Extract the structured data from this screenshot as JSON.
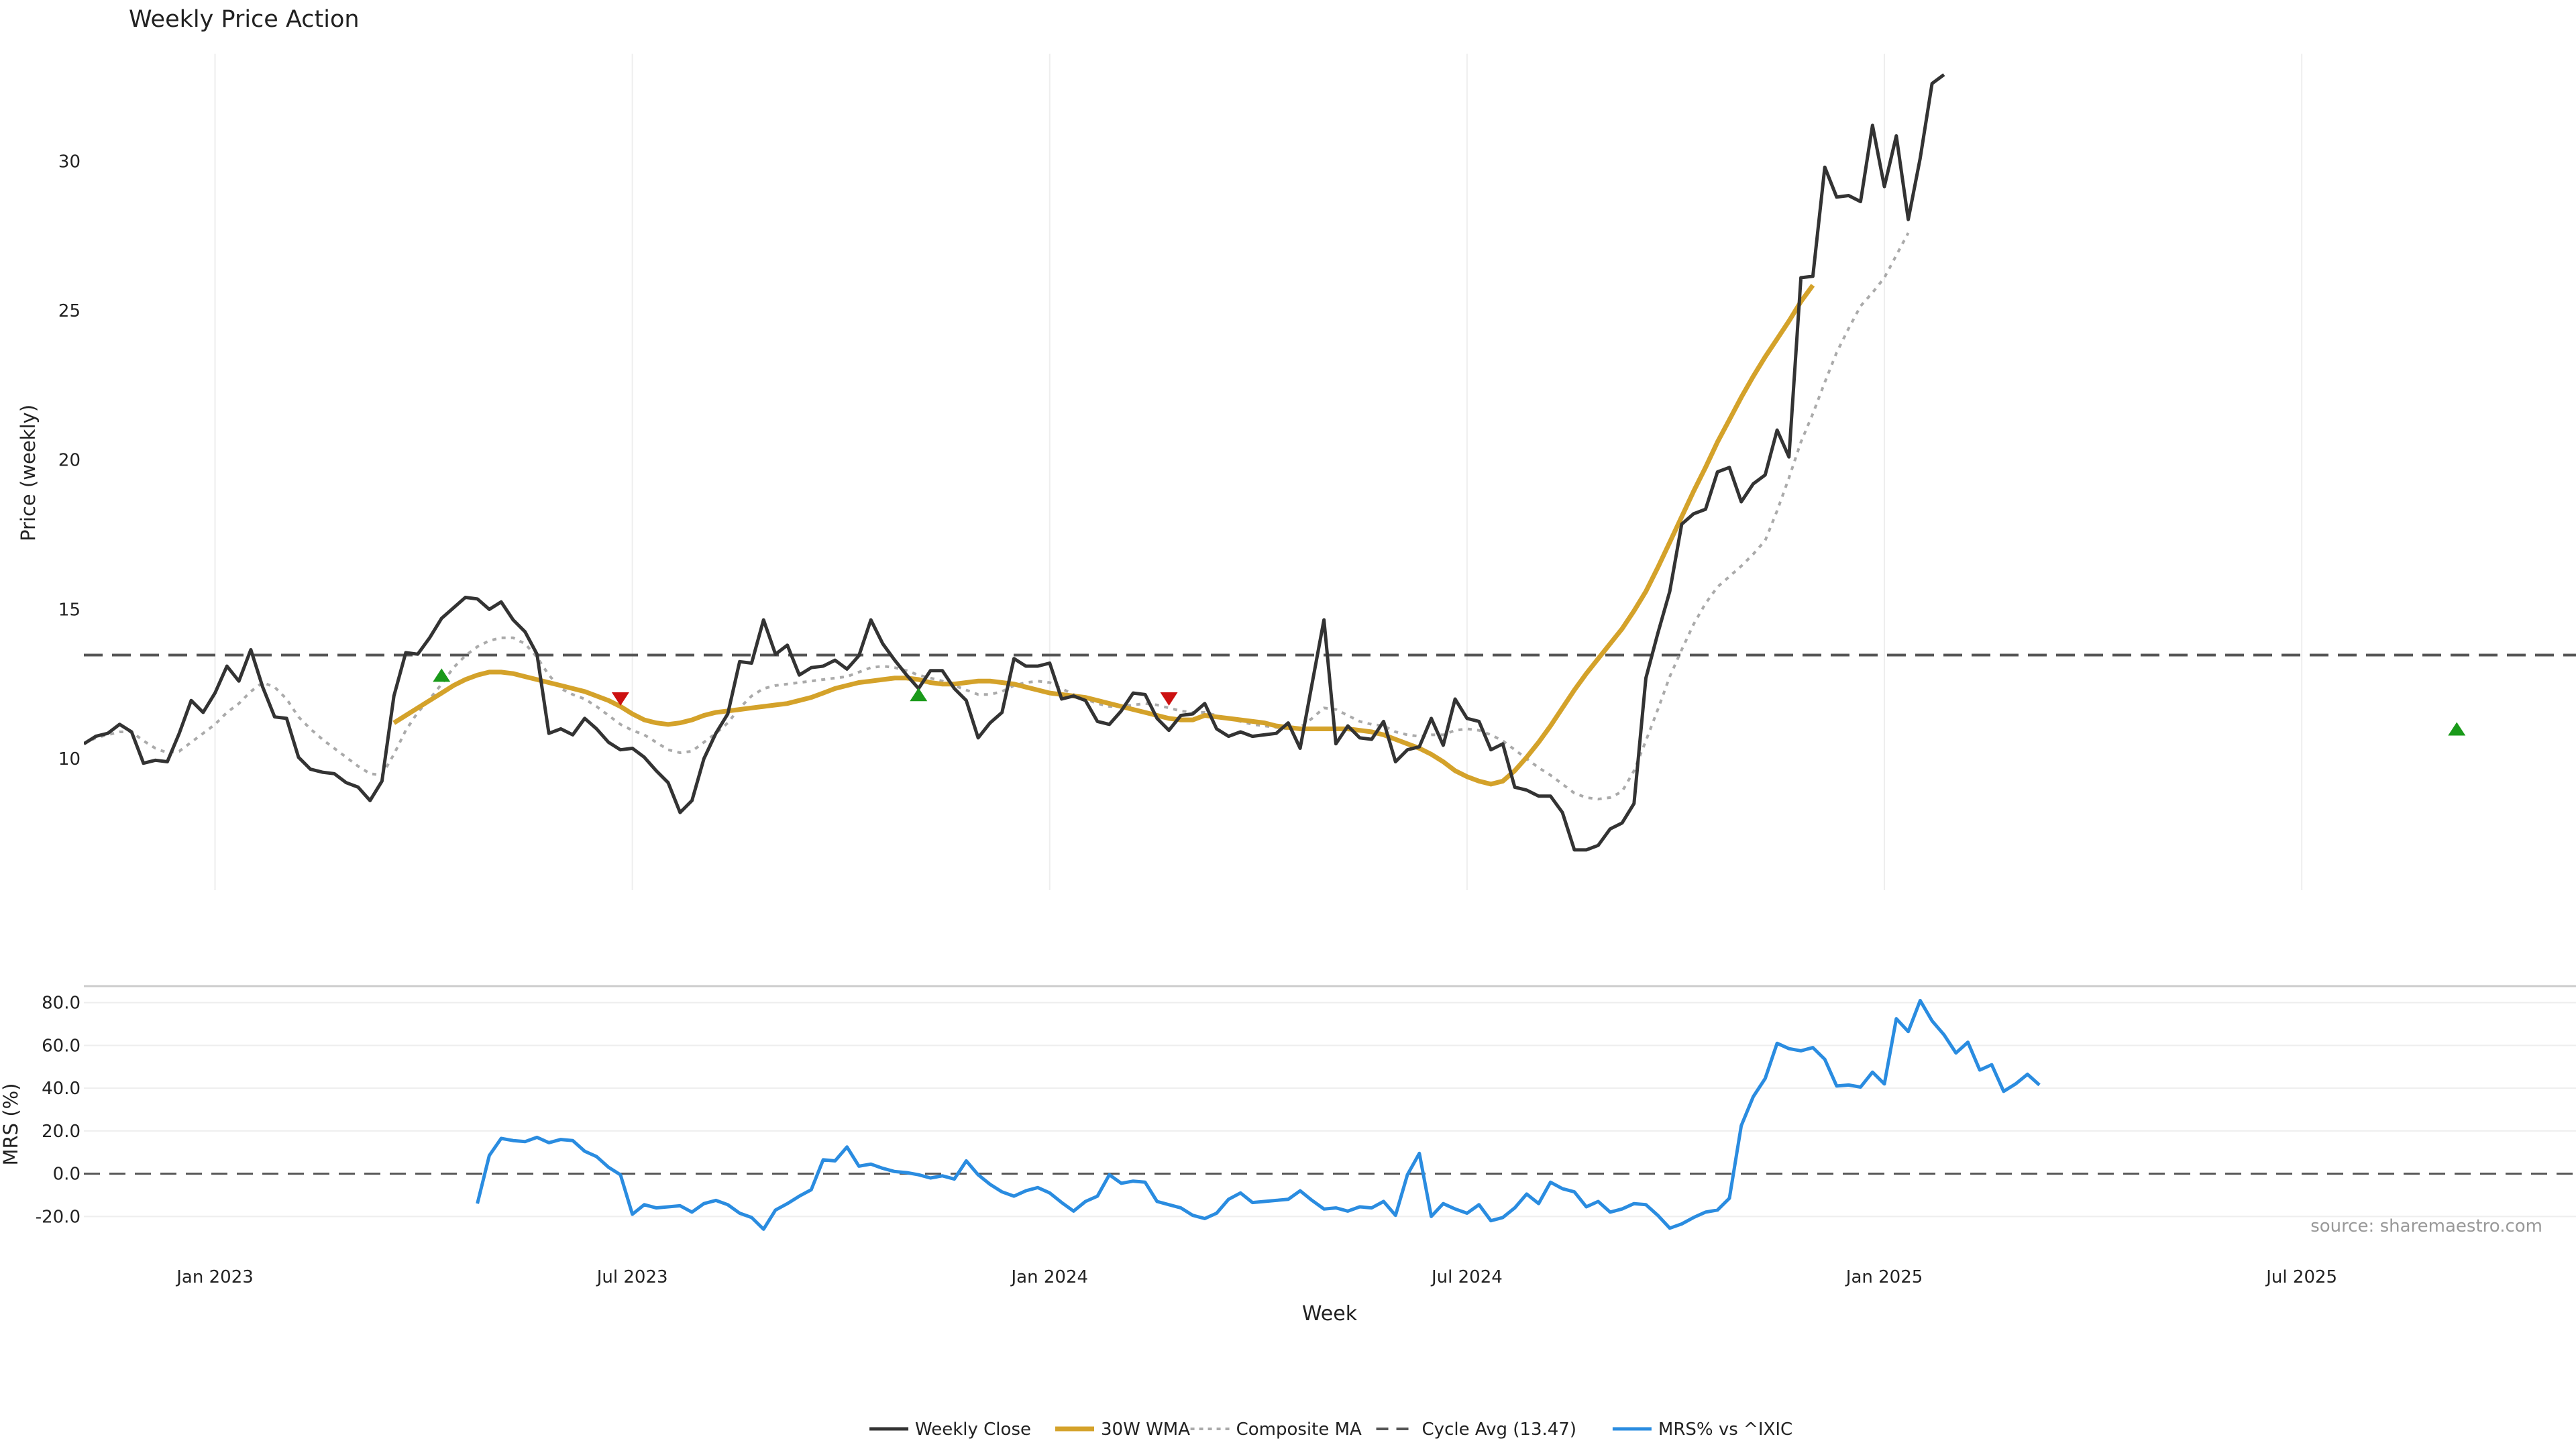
{
  "chart_data": {
    "type": "line",
    "title": "Weekly Price Action",
    "xlabel": "Week",
    "source_text": "source: sharemaestro.com",
    "colors": {
      "close": "#333333",
      "wma": "#d4a22a",
      "composite": "#aaaaaa",
      "cycle": "#555555",
      "mrs": "#2a8ce0",
      "buy": "#1a9a1a",
      "sell": "#cc1111",
      "grid": "#eeeeee"
    },
    "x_tick_labels": [
      "Jan 2023",
      "Jul 2023",
      "Jan 2024",
      "Jul 2024",
      "Jan 2025",
      "Jul 2025"
    ],
    "x_tick_weeks": [
      11,
      46,
      81,
      116,
      151,
      186
    ],
    "x_range": [
      0,
      209
    ],
    "price_panel": {
      "ylabel": "Price (weekly)",
      "ylim": [
        5.6,
        33.6
      ],
      "y_ticks": [
        10,
        15,
        20,
        25,
        30
      ],
      "cycle_avg": 13.47
    },
    "mrs_panel": {
      "ylabel": "MRS (%)",
      "ylim": [
        -29.0,
        89.0
      ],
      "y_ticks": [
        80,
        60,
        40,
        20,
        0,
        -20
      ],
      "y_tick_labels": [
        "80.0",
        "60.0",
        "40.0",
        "20.0",
        "0.0",
        "-20.0"
      ]
    },
    "legend": [
      {
        "label": "Weekly Close",
        "style": "solid",
        "color": "#333333"
      },
      {
        "label": "30W WMA",
        "style": "solid-thick",
        "color": "#d4a22a"
      },
      {
        "label": "Composite MA",
        "style": "dotted",
        "color": "#aaaaaa"
      },
      {
        "label": "Cycle Avg (13.47)",
        "style": "dashed",
        "color": "#555555"
      },
      {
        "label": "MRS% vs ^IXIC",
        "style": "solid",
        "color": "#2a8ce0"
      }
    ],
    "series": {
      "close_start": 0,
      "close": [
        10.5,
        10.75,
        10.85,
        11.15,
        10.9,
        9.85,
        9.95,
        9.9,
        10.85,
        11.95,
        11.55,
        12.2,
        13.1,
        12.6,
        13.65,
        12.4,
        11.4,
        11.35,
        10.05,
        9.65,
        9.55,
        9.5,
        9.2,
        9.05,
        8.6,
        9.25,
        12.1,
        13.55,
        13.5,
        14.05,
        14.7,
        15.05,
        15.4,
        15.35,
        15.0,
        15.25,
        14.65,
        14.25,
        13.5,
        10.85,
        11.0,
        10.8,
        11.35,
        11.0,
        10.55,
        10.3,
        10.35,
        10.05,
        9.6,
        9.2,
        8.2,
        8.6,
        10.0,
        10.85,
        11.5,
        13.25,
        13.2,
        14.65,
        13.5,
        13.8,
        12.8,
        13.05,
        13.1,
        13.3,
        13.0,
        13.45,
        14.65,
        13.85,
        13.3,
        12.8,
        12.35,
        12.95,
        12.95,
        12.35,
        11.95,
        10.7,
        11.2,
        11.55,
        13.35,
        13.1,
        13.1,
        13.2,
        12.0,
        12.1,
        11.95,
        11.25,
        11.15,
        11.6,
        12.2,
        12.15,
        11.35,
        10.95,
        11.45,
        11.5,
        11.85,
        11.0,
        10.75,
        10.9,
        10.75,
        10.8,
        10.85,
        11.2,
        10.35,
        12.5,
        14.65,
        10.5,
        11.1,
        10.7,
        10.65,
        11.25,
        9.9,
        10.3,
        10.4,
        11.35,
        10.45,
        12.0,
        11.35,
        11.25,
        10.3,
        10.5,
        9.05,
        8.95,
        8.75,
        8.75,
        8.2,
        6.95,
        6.95,
        7.1,
        7.65,
        7.85,
        8.5,
        12.7,
        14.2,
        15.6,
        17.85,
        18.2,
        18.35,
        19.6,
        19.75,
        18.6,
        19.2,
        19.5,
        21.0,
        20.1,
        26.1,
        26.15,
        29.8,
        28.8,
        28.85,
        28.65,
        31.2,
        29.15,
        30.85,
        28.05,
        30.1,
        32.6,
        32.9
      ],
      "composite_start": 0,
      "composite": [
        10.5,
        10.7,
        10.8,
        10.9,
        10.9,
        10.6,
        10.35,
        10.2,
        10.25,
        10.55,
        10.85,
        11.15,
        11.55,
        11.85,
        12.25,
        12.55,
        12.4,
        12.0,
        11.4,
        11.0,
        10.65,
        10.35,
        10.05,
        9.75,
        9.5,
        9.45,
        10.15,
        10.95,
        11.55,
        12.0,
        12.5,
        13.05,
        13.45,
        13.75,
        13.95,
        14.05,
        14.05,
        13.85,
        13.4,
        12.8,
        12.35,
        12.15,
        12.0,
        11.75,
        11.45,
        11.15,
        10.95,
        10.8,
        10.55,
        10.3,
        10.2,
        10.25,
        10.55,
        10.85,
        11.2,
        11.7,
        12.1,
        12.35,
        12.45,
        12.5,
        12.55,
        12.6,
        12.65,
        12.7,
        12.75,
        12.9,
        13.05,
        13.1,
        13.05,
        12.95,
        12.8,
        12.7,
        12.6,
        12.45,
        12.3,
        12.15,
        12.15,
        12.25,
        12.45,
        12.55,
        12.6,
        12.55,
        12.35,
        12.15,
        12.0,
        11.85,
        11.75,
        11.75,
        11.8,
        11.85,
        11.8,
        11.7,
        11.6,
        11.55,
        11.55,
        11.45,
        11.35,
        11.25,
        11.15,
        11.1,
        11.05,
        11.0,
        11.05,
        11.35,
        11.7,
        11.65,
        11.45,
        11.25,
        11.15,
        11.1,
        10.9,
        10.8,
        10.75,
        10.8,
        10.8,
        10.95,
        11.0,
        10.95,
        10.8,
        10.6,
        10.3,
        10.0,
        9.7,
        9.45,
        9.15,
        8.85,
        8.7,
        8.65,
        8.7,
        8.9,
        9.6,
        10.6,
        11.65,
        12.75,
        13.65,
        14.5,
        15.2,
        15.75,
        16.1,
        16.45,
        16.85,
        17.3,
        18.3,
        19.4,
        20.6,
        21.55,
        22.6,
        23.6,
        24.4,
        25.15,
        25.6,
        26.1,
        26.85,
        27.6
      ],
      "wma_start": 26,
      "wma": [
        11.2,
        11.45,
        11.7,
        11.95,
        12.2,
        12.45,
        12.65,
        12.8,
        12.9,
        12.9,
        12.85,
        12.75,
        12.65,
        12.55,
        12.45,
        12.35,
        12.25,
        12.1,
        11.95,
        11.75,
        11.5,
        11.3,
        11.2,
        11.15,
        11.2,
        11.3,
        11.45,
        11.55,
        11.6,
        11.65,
        11.7,
        11.75,
        11.8,
        11.85,
        11.95,
        12.05,
        12.2,
        12.35,
        12.45,
        12.55,
        12.6,
        12.65,
        12.7,
        12.7,
        12.65,
        12.55,
        12.5,
        12.5,
        12.55,
        12.6,
        12.6,
        12.55,
        12.5,
        12.4,
        12.3,
        12.2,
        12.15,
        12.1,
        12.05,
        11.95,
        11.85,
        11.75,
        11.65,
        11.55,
        11.45,
        11.35,
        11.3,
        11.3,
        11.45,
        11.4,
        11.35,
        11.3,
        11.25,
        11.2,
        11.1,
        11.05,
        11.0,
        11.0,
        11.0,
        11.0,
        11.0,
        10.95,
        10.9,
        10.8,
        10.65,
        10.5,
        10.35,
        10.15,
        9.9,
        9.6,
        9.4,
        9.25,
        9.15,
        9.25,
        9.6,
        10.05,
        10.55,
        11.1,
        11.7,
        12.3,
        12.85,
        13.35,
        13.85,
        14.35,
        14.95,
        15.6,
        16.4,
        17.25,
        18.1,
        18.95,
        19.75,
        20.6,
        21.35,
        22.1,
        22.8,
        23.45,
        24.05,
        24.65,
        25.3,
        25.85
      ],
      "mrs_start": 33,
      "mrs": [
        -14.0,
        8.5,
        16.5,
        15.5,
        15.0,
        17.0,
        14.5,
        16.0,
        15.5,
        10.5,
        8.0,
        3.0,
        -0.5,
        -19.0,
        -14.5,
        -16.0,
        -15.5,
        -15.0,
        -18.0,
        -14.0,
        -12.5,
        -14.5,
        -18.5,
        -20.5,
        -26.0,
        -17.0,
        -14.0,
        -10.5,
        -7.5,
        6.5,
        6.0,
        12.5,
        3.5,
        4.5,
        2.5,
        1.0,
        0.5,
        -0.5,
        -2.0,
        -1.0,
        -2.5,
        6.0,
        -0.5,
        -5.0,
        -8.5,
        -10.5,
        -8.0,
        -6.5,
        -9.0,
        -13.5,
        -17.5,
        -13.0,
        -10.5,
        -0.5,
        -4.5,
        -3.5,
        -4.0,
        -13.0,
        -14.5,
        -16.0,
        -19.5,
        -21.0,
        -18.5,
        -12.0,
        -9.0,
        -13.5,
        -13.0,
        -12.5,
        -12.0,
        -8.0,
        -12.5,
        -16.5,
        -16.0,
        -17.5,
        -15.5,
        -16.0,
        -13.0,
        -19.5,
        -0.5,
        9.5,
        -20.0,
        -14.0,
        -16.5,
        -18.5,
        -14.5,
        -22.0,
        -20.5,
        -16.0,
        -9.5,
        -14.0,
        -4.0,
        -7.0,
        -8.5,
        -15.5,
        -13.0,
        -18.0,
        -16.5,
        -14.0,
        -14.5,
        -19.5,
        -25.5,
        -23.5,
        -20.5,
        -18.0,
        -17.0,
        -11.5,
        22.5,
        36.0,
        44.5,
        61.0,
        58.5,
        57.5,
        59.0,
        53.5,
        41.0,
        41.5,
        40.5,
        47.5,
        42.0,
        72.5,
        66.5,
        81.0,
        71.5,
        65.0,
        56.5,
        61.5,
        48.5,
        51.0,
        38.5,
        42.0,
        46.5,
        41.5
      ]
    },
    "signals": [
      {
        "type": "buy",
        "week": 30,
        "price": 12.8
      },
      {
        "type": "sell",
        "week": 45,
        "price": 12.0
      },
      {
        "type": "buy",
        "week": 70,
        "price": 12.15
      },
      {
        "type": "sell",
        "week": 91,
        "price": 12.0
      },
      {
        "type": "buy",
        "week": 199,
        "price": 11.0
      }
    ]
  }
}
